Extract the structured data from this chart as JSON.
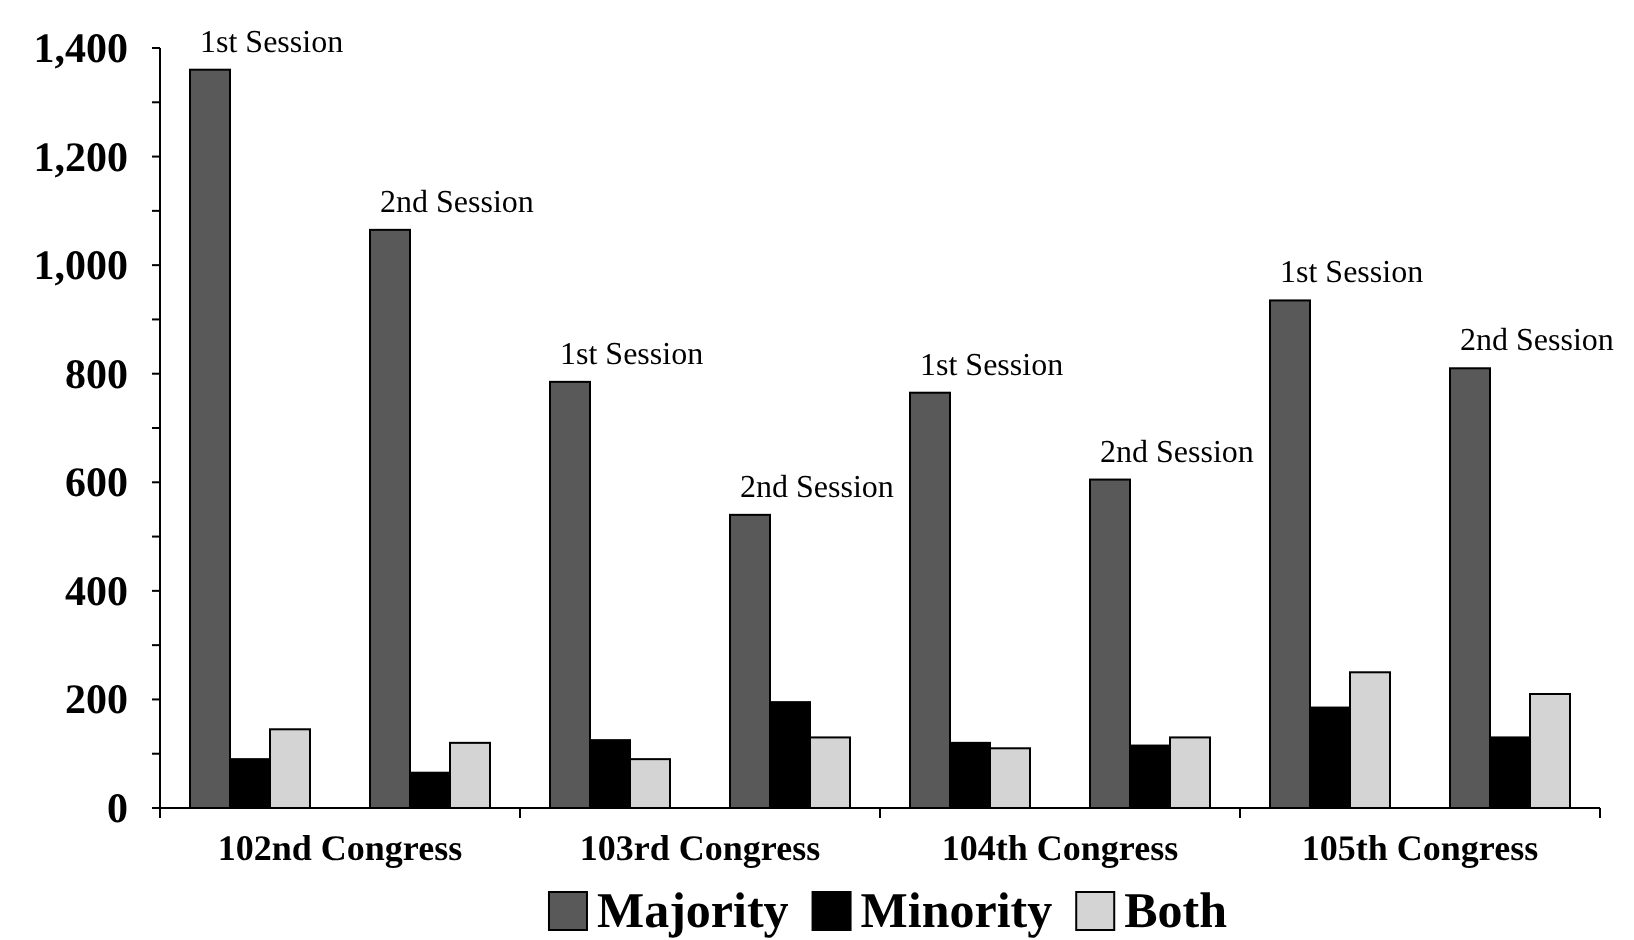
{
  "chart_data": {
    "type": "bar",
    "categories": [
      "1st Session",
      "2nd Session",
      "1st Session",
      "2nd Session",
      "1st Session",
      "2nd Session",
      "1st Session",
      "2nd Session"
    ],
    "series": [
      {
        "name": "Majority",
        "color": "#595959",
        "values": [
          1360,
          1065,
          785,
          540,
          765,
          605,
          935,
          810
        ]
      },
      {
        "name": "Minority",
        "color": "#000000",
        "values": [
          90,
          65,
          125,
          195,
          120,
          115,
          185,
          130
        ]
      },
      {
        "name": "Both",
        "color": "#d4d4d4",
        "values": [
          145,
          120,
          90,
          130,
          110,
          130,
          250,
          210
        ]
      }
    ],
    "ylim": [
      0,
      1400
    ],
    "yticks": [
      0,
      {
        "value": 100,
        "label": null
      },
      200,
      {
        "value": 300,
        "label": null
      },
      400,
      {
        "value": 500,
        "label": null
      },
      600,
      {
        "value": 700,
        "label": null
      },
      800,
      {
        "value": 900,
        "label": null
      },
      {
        "value": 1000,
        "label": "1,000"
      },
      {
        "value": 1100,
        "label": null
      },
      {
        "value": 1200,
        "label": "1,200"
      },
      {
        "value": 1300,
        "label": null
      },
      {
        "value": 1400,
        "label": "1,400"
      }
    ],
    "annotations": [
      "102nd Congress",
      "103rd Congress",
      "104th Congress",
      "105th Congress"
    ],
    "legend": "bottom"
  }
}
